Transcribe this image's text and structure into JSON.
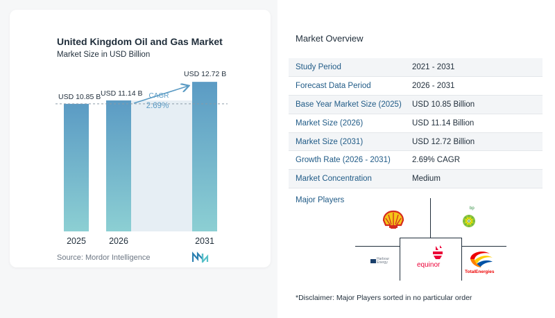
{
  "chart_data": {
    "type": "bar",
    "title": "United Kingdom Oil and Gas Market",
    "subtitle": "Market Size in USD Billion",
    "categories": [
      "2025",
      "2026",
      "2031"
    ],
    "values": [
      10.85,
      11.14,
      12.72
    ],
    "value_labels": [
      "USD 10.85 B",
      "USD 11.14 B",
      "USD 12.72 B"
    ],
    "cagr_label": "CAGR",
    "cagr_value": "2.69%",
    "bar_color_top": "#5b9bc4",
    "bar_color_bottom": "#8ccfd3",
    "shade_color": "#e6eef4",
    "ylim": [
      0,
      13.2
    ]
  },
  "source": "Source:  Mordor Intelligence",
  "overview": {
    "title": "Market Overview",
    "rows": [
      {
        "key": "Study Period",
        "value": "2021 - 2031"
      },
      {
        "key": "Forecast Data Period",
        "value": "2026 - 2031"
      },
      {
        "key": "Base Year Market Size (2025)",
        "value": "USD 10.85 Billion"
      },
      {
        "key": "Market Size (2026)",
        "value": "USD 11.14 Billion"
      },
      {
        "key": "Market Size (2031)",
        "value": "USD 12.72 Billion"
      },
      {
        "key": "Growth Rate (2026 - 2031)",
        "value": "2.69% CAGR"
      },
      {
        "key": "Market Concentration",
        "value": "Medium"
      }
    ],
    "players_label": "Major Players",
    "players": {
      "shell": "Shell",
      "bp": "bp",
      "harbour": "Harbour Energy",
      "equinor": "equinor",
      "total": "TotalEnergies"
    },
    "disclaimer": "*Disclaimer: Major Players sorted in no particular order"
  },
  "colors": {
    "accent": "#1f5a86",
    "text": "#1f2d3a"
  }
}
